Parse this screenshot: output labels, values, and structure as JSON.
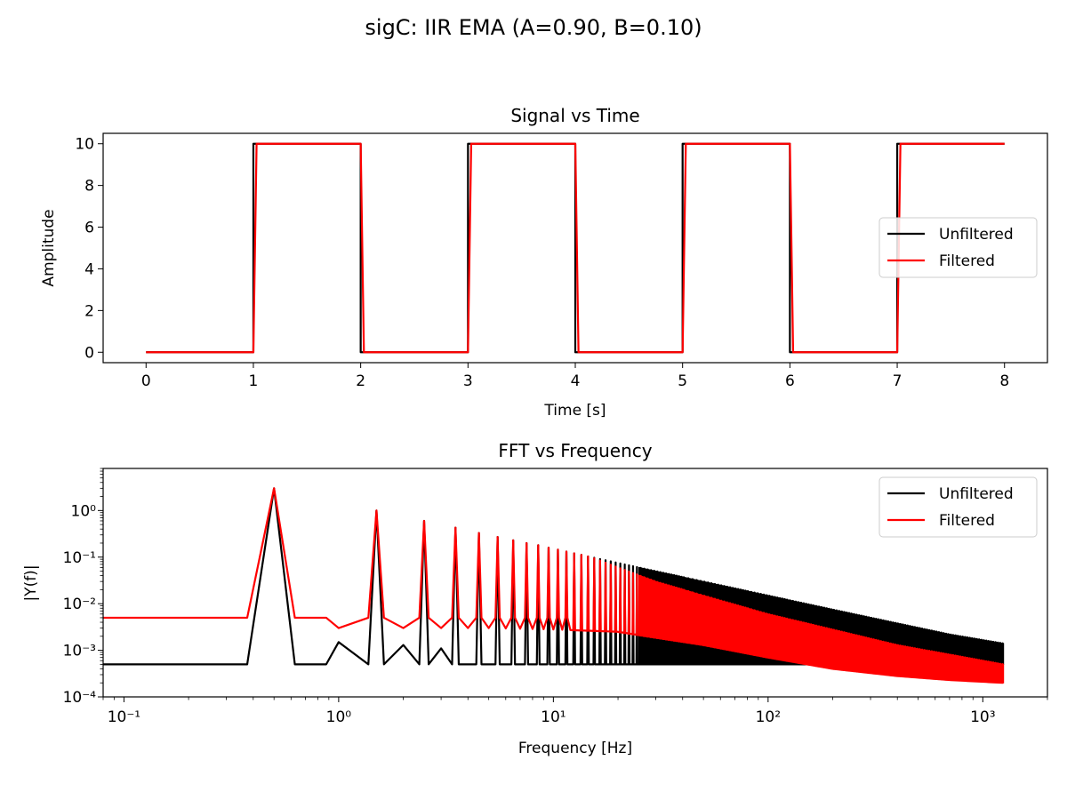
{
  "figure": {
    "suptitle": "sigC: IIR EMA (A=0.90, B=0.10)"
  },
  "colors": {
    "unfiltered": "#000000",
    "filtered": "#ff0000"
  },
  "chart_data": [
    {
      "type": "line",
      "title": "Signal vs Time",
      "xlabel": "Time [s]",
      "ylabel": "Amplitude",
      "xlim": [
        -0.4,
        8.4
      ],
      "ylim": [
        -0.5,
        10.5
      ],
      "xticks": [
        0,
        1,
        2,
        3,
        4,
        5,
        6,
        7,
        8
      ],
      "xtick_labels": [
        "0",
        "1",
        "2",
        "3",
        "4",
        "5",
        "6",
        "7",
        "8"
      ],
      "yticks": [
        0,
        2,
        4,
        6,
        8,
        10
      ],
      "ytick_labels": [
        "0",
        "2",
        "4",
        "6",
        "8",
        "10"
      ],
      "legend_position": "center-right",
      "signal": {
        "kind": "square-wave",
        "low": 0,
        "high": 10,
        "period": 2,
        "first_rise": 1,
        "duration": [
          0,
          8
        ],
        "ema_alpha": 0.1
      },
      "series": [
        {
          "name": "Unfiltered",
          "color": "#000000",
          "x": [
            0,
            1,
            1,
            2,
            2,
            3,
            3,
            4,
            4,
            5,
            5,
            6,
            6,
            7,
            7,
            8
          ],
          "y": [
            0,
            0,
            10,
            10,
            0,
            0,
            10,
            10,
            0,
            0,
            10,
            10,
            0,
            0,
            10,
            10
          ]
        },
        {
          "name": "Filtered",
          "color": "#ff0000",
          "description_only": false,
          "x": [
            0,
            1,
            1.03,
            2,
            2.03,
            3,
            3.03,
            4,
            4.03,
            5,
            5.03,
            6,
            6.03,
            7,
            7.03,
            8
          ],
          "y": [
            0,
            0,
            10,
            10,
            0,
            0,
            10,
            10,
            0,
            0,
            10,
            10,
            0,
            0,
            10,
            10
          ]
        }
      ]
    },
    {
      "type": "line",
      "title": "FFT vs Frequency",
      "xlabel": "Frequency [Hz]",
      "ylabel": "|Y(f)|",
      "xscale": "log",
      "yscale": "log",
      "xlim": [
        0.08,
        2000
      ],
      "ylim": [
        0.0001,
        8
      ],
      "xticks": [
        0.1,
        1,
        10,
        100,
        1000
      ],
      "xtick_labels": [
        "10⁻¹",
        "10⁰",
        "10¹",
        "10²",
        "10³"
      ],
      "yticks": [
        0.0001,
        0.001,
        0.01,
        0.1,
        1
      ],
      "ytick_labels": [
        "10⁻⁴",
        "10⁻³",
        "10⁻²",
        "10⁻¹",
        "10⁰"
      ],
      "legend_position": "top-right",
      "series": [
        {
          "name": "Unfiltered",
          "color": "#000000",
          "floor": 0.0005,
          "frequency_range": [
            0.08,
            1250
          ],
          "peaks": [
            [
              0.5,
              3.0
            ],
            [
              1.5,
              1.0
            ],
            [
              2.5,
              0.6
            ],
            [
              3.5,
              0.43
            ],
            [
              4.5,
              0.33
            ],
            [
              5.5,
              0.27
            ],
            [
              6.5,
              0.23
            ],
            [
              7.5,
              0.2
            ],
            [
              8.5,
              0.18
            ],
            [
              9.5,
              0.16
            ],
            [
              15,
              0.1
            ],
            [
              20,
              0.075
            ],
            [
              30,
              0.05
            ],
            [
              50,
              0.03
            ],
            [
              100,
              0.015
            ],
            [
              200,
              0.0075
            ],
            [
              400,
              0.0038
            ],
            [
              700,
              0.0022
            ],
            [
              1250,
              0.0014
            ]
          ],
          "even_harmonic_peaks": [
            [
              1.0,
              0.0015
            ],
            [
              2.0,
              0.0013
            ],
            [
              3.0,
              0.0011
            ]
          ]
        },
        {
          "name": "Filtered",
          "color": "#ff0000",
          "floor": 0.005,
          "frequency_range": [
            0.08,
            1250
          ],
          "peaks": [
            [
              0.5,
              3.0
            ],
            [
              1.5,
              1.0
            ],
            [
              2.5,
              0.6
            ],
            [
              3.5,
              0.43
            ],
            [
              4.5,
              0.33
            ],
            [
              5.5,
              0.27
            ],
            [
              6.5,
              0.23
            ],
            [
              7.5,
              0.2
            ],
            [
              8.5,
              0.18
            ],
            [
              9.5,
              0.16
            ],
            [
              15,
              0.1
            ],
            [
              20,
              0.06
            ],
            [
              30,
              0.03
            ],
            [
              50,
              0.015
            ],
            [
              100,
              0.006
            ],
            [
              200,
              0.0028
            ],
            [
              400,
              0.0013
            ],
            [
              1250,
              0.0005
            ]
          ],
          "valleys": [
            [
              1,
              0.003
            ],
            [
              2,
              0.003
            ],
            [
              3,
              0.003
            ],
            [
              5,
              0.003
            ],
            [
              10,
              0.0028
            ],
            [
              20,
              0.0025
            ],
            [
              50,
              0.0013
            ],
            [
              100,
              0.0007
            ],
            [
              200,
              0.0004
            ],
            [
              400,
              0.00028
            ],
            [
              700,
              0.00023
            ],
            [
              1250,
              0.0002
            ]
          ]
        }
      ]
    }
  ]
}
